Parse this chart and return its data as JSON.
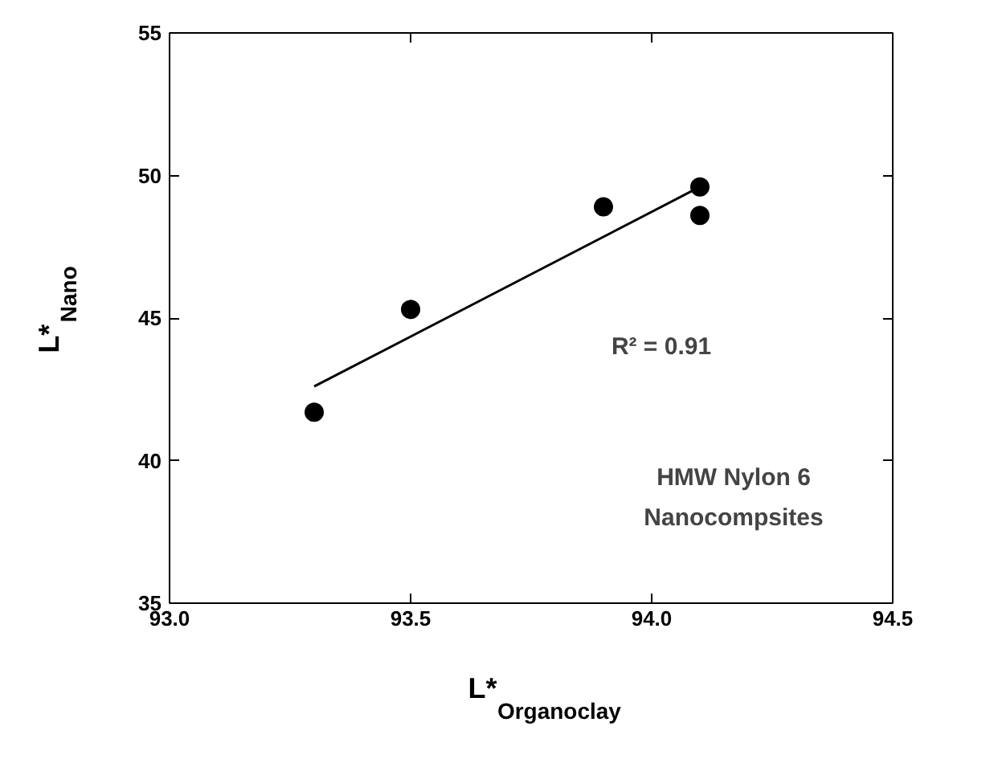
{
  "chart_data": {
    "type": "scatter",
    "xlabel": "L*$_{Organoclay}$",
    "ylabel": "L*$_{Nano}$",
    "xlim": [
      93.0,
      94.5
    ],
    "xticks": [
      {
        "value": 93.0,
        "label": "93.0"
      },
      {
        "value": 93.5,
        "label": "93.5"
      },
      {
        "value": 94.0,
        "label": "94.0"
      },
      {
        "value": 94.5,
        "label": "94.5"
      }
    ],
    "ylim": [
      35,
      55
    ],
    "yticks": [
      35,
      40,
      45,
      50,
      55
    ],
    "marker": "circle",
    "series": [
      {
        "color": "#000000",
        "x": [
          93.3,
          93.5,
          93.9,
          94.1,
          94.1
        ],
        "values": [
          41.7,
          45.3,
          48.9,
          49.6,
          48.6
        ]
      },
      {
        "type": "line",
        "color": "#000000",
        "x": [
          93.3,
          94.1
        ],
        "values": [
          42.6,
          49.6
        ],
        "marker": "none"
      }
    ],
    "annotations": [
      "R² = 0.91",
      "HMW Nylon 6",
      "Nanocompsites"
    ]
  }
}
